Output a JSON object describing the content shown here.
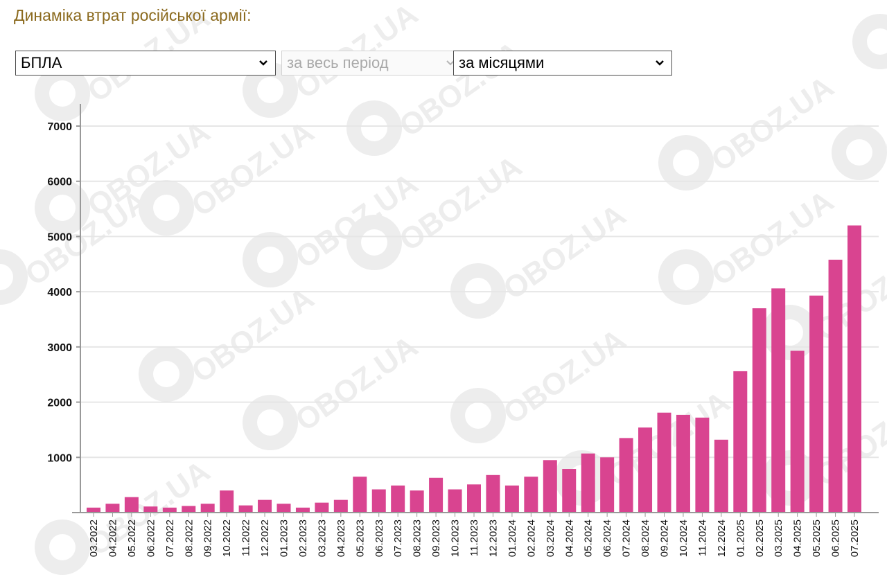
{
  "header": {
    "title": "Динаміка втрат російської армії:"
  },
  "filters": {
    "category": {
      "selected": "БПЛА"
    },
    "period": {
      "selected": "за весь період",
      "disabled": true
    },
    "grouping": {
      "selected": "за місяцями"
    }
  },
  "watermark": {
    "text": "OBOZ.UA"
  },
  "colors": {
    "bar": "#d94490",
    "axis": "#999999",
    "grid": "#e6e6e6",
    "title": "#8b6a1e"
  },
  "chart_data": {
    "type": "bar",
    "ylim": [
      0,
      7000
    ],
    "yticks": [
      1000,
      2000,
      3000,
      4000,
      5000,
      6000,
      7000
    ],
    "grid": true,
    "categories": [
      "03.2022",
      "04.2022",
      "05.2022",
      "06.2022",
      "07.2022",
      "08.2022",
      "09.2022",
      "10.2022",
      "11.2022",
      "12.2022",
      "01.2023",
      "02.2023",
      "03.2023",
      "04.2023",
      "05.2023",
      "06.2023",
      "07.2023",
      "08.2023",
      "09.2023",
      "10.2023",
      "11.2023",
      "12.2023",
      "01.2024",
      "02.2024",
      "03.2024",
      "04.2024",
      "05.2024",
      "06.2024",
      "07.2024",
      "08.2024",
      "09.2024",
      "10.2024",
      "11.2024",
      "12.2024",
      "01.2025",
      "02.2025",
      "03.2025",
      "04.2025",
      "05.2025",
      "06.2025",
      "07.2025"
    ],
    "values": [
      90,
      160,
      280,
      110,
      90,
      120,
      160,
      400,
      130,
      230,
      160,
      90,
      180,
      230,
      650,
      420,
      490,
      400,
      630,
      420,
      510,
      680,
      490,
      650,
      950,
      790,
      1070,
      1000,
      1350,
      1540,
      1810,
      1770,
      1720,
      1320,
      2560,
      3700,
      4060,
      2930,
      3930,
      4580,
      5200
    ]
  }
}
